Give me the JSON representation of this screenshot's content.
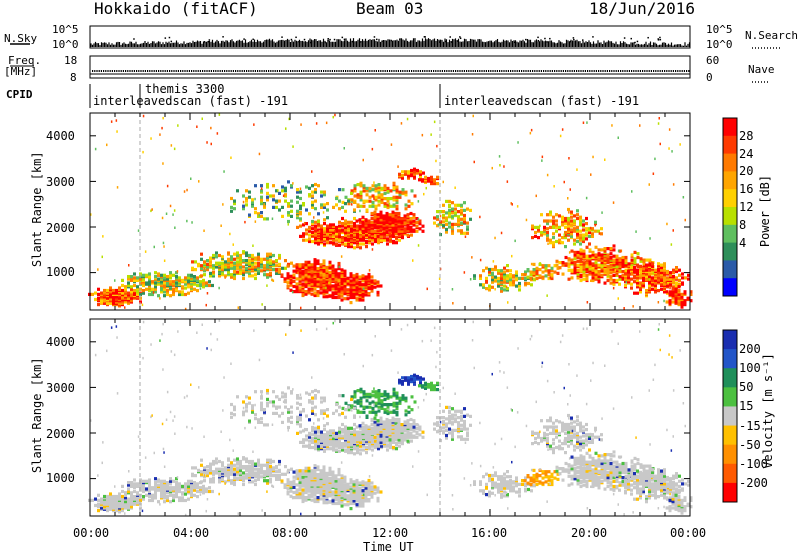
{
  "header": {
    "station": "Hokkaido (fitACF)",
    "beam": "Beam 03",
    "date": "18/Jun/2016"
  },
  "top_panels": {
    "nsky_label": "N.Sky",
    "nsky_ticks": [
      "10^5",
      "10^0"
    ],
    "nsearch_label": "N.Search",
    "nsearch_ticks": [
      "10^5",
      "10^0"
    ],
    "freq_label_1": "Freq.",
    "freq_label_2": "[MHz]",
    "freq_ticks": [
      "18",
      "8"
    ],
    "nave_label": "Nave",
    "nave_ticks": [
      "60",
      "0"
    ],
    "cpid_label": "CPID",
    "cpid_segments": [
      {
        "name": "interleavedscan (fast) -191",
        "start_hour": 0
      },
      {
        "name": "themis 3300",
        "start_hour": 2
      },
      {
        "name": "interleavedscan (fast) -191",
        "start_hour": 14
      }
    ]
  },
  "chart_data": [
    {
      "type": "heatmap",
      "panel": "power",
      "ylabel": "Slant Range [km]",
      "yticks": [
        1000,
        2000,
        3000,
        4000
      ],
      "ylim": [
        180,
        4500
      ],
      "xlim": [
        0,
        24
      ],
      "colorbar": {
        "label": "Power [dB]",
        "ticks": [
          "28",
          "24",
          "20",
          "16",
          "12",
          "8",
          "4"
        ],
        "colors": [
          "#ff0000",
          "#ff3a00",
          "#ff7a00",
          "#ffa500",
          "#ffd000",
          "#b8e000",
          "#5fbf5f",
          "#2e8f5a",
          "#2a5aa8",
          "#0000ff"
        ]
      }
    },
    {
      "type": "heatmap",
      "panel": "velocity",
      "ylabel": "Slant Range [km]",
      "yticks": [
        1000,
        2000,
        3000,
        4000
      ],
      "ylim": [
        180,
        4500
      ],
      "xlim": [
        0,
        24
      ],
      "xlabel": "Time UT",
      "xticks": [
        "00:00",
        "04:00",
        "08:00",
        "12:00",
        "16:00",
        "20:00",
        "00:00"
      ],
      "colorbar": {
        "label": "Velocity [m s⁻¹]",
        "ticks": [
          "200",
          "100",
          "50",
          "15",
          "-15",
          "-50",
          "-100",
          "-200"
        ],
        "colors": [
          "#1a2eb0",
          "#2255c8",
          "#1f8f5a",
          "#4cc040",
          "#c8c8c8",
          "#ffc000",
          "#ff9000",
          "#ff5a00",
          "#ff0000"
        ]
      }
    }
  ]
}
